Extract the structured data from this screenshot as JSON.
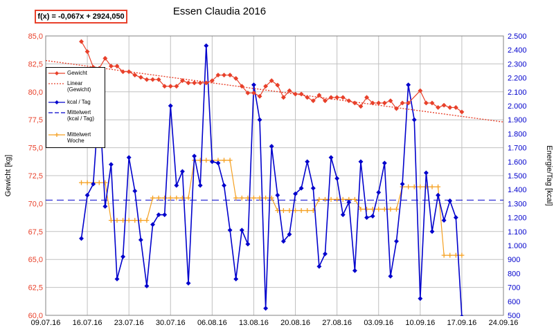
{
  "equation": "f(x) = -0,067x + 2924,050",
  "chart_data": {
    "type": "line",
    "title": "Essen Claudia 2016",
    "ylabel_left": "Gewicht [kg]",
    "ylabel_right": "Energie/Tag [kcal]",
    "xlabel": "",
    "x_ticks": [
      "09.07.16",
      "16.07.16",
      "23.07.16",
      "30.07.16",
      "06.08.16",
      "13.08.16",
      "20.08.16",
      "27.08.16",
      "03.09.16",
      "10.09.16",
      "17.09.16",
      "24.09.16"
    ],
    "y_left_ticks": [
      "60,0",
      "62,5",
      "65,0",
      "67,5",
      "70,0",
      "72,5",
      "75,0",
      "77,5",
      "80,0",
      "82,5",
      "85,0"
    ],
    "y_right_ticks": [
      "500",
      "600",
      "700",
      "800",
      "900",
      "1.000",
      "1.100",
      "1.200",
      "1.300",
      "1.400",
      "1.500",
      "1.600",
      "1.700",
      "1.800",
      "1.900",
      "2.000",
      "2.100",
      "2.200",
      "2.300",
      "2.400",
      "2.500"
    ],
    "ylim_left": [
      60,
      85
    ],
    "ylim_right": [
      500,
      2500
    ],
    "xlim_days": [
      0,
      77
    ],
    "x_start": "09.07.16",
    "grid": true,
    "legend_position": "left",
    "series": [
      {
        "name": "Gewicht",
        "axis": "left",
        "color": "#e8402a",
        "marker": "diamond",
        "x": [
          6,
          7,
          8,
          9,
          10,
          11,
          12,
          13,
          14,
          15,
          16,
          17,
          18,
          19,
          20,
          21,
          22,
          23,
          24,
          25,
          26,
          27,
          28,
          29,
          30,
          31,
          32,
          33,
          34,
          35,
          36,
          37,
          38,
          39,
          40,
          41,
          42,
          43,
          44,
          45,
          46,
          47,
          48,
          49,
          50,
          51,
          52,
          53,
          54,
          55,
          56,
          57,
          58,
          59,
          60,
          61,
          63,
          64,
          65,
          66,
          67,
          68,
          69,
          70
        ],
        "values": [
          84.5,
          83.6,
          82.2,
          82.1,
          83.0,
          82.3,
          82.3,
          81.8,
          81.8,
          81.5,
          81.3,
          81.1,
          81.1,
          81.1,
          80.5,
          80.5,
          80.5,
          81.0,
          80.8,
          80.8,
          80.8,
          80.8,
          81.0,
          81.5,
          81.5,
          81.5,
          81.2,
          80.5,
          79.9,
          79.9,
          79.6,
          80.5,
          81.0,
          80.6,
          79.5,
          80.1,
          79.8,
          79.8,
          79.5,
          79.2,
          79.7,
          79.2,
          79.5,
          79.5,
          79.5,
          79.2,
          79.0,
          78.7,
          79.5,
          79.0,
          79.0,
          79.0,
          79.2,
          78.5,
          79.0,
          79.0,
          80.1,
          79.0,
          79.0,
          78.6,
          78.8,
          78.6,
          78.6,
          78.2
        ]
      },
      {
        "name": "Linear (Gewicht)",
        "axis": "left",
        "color": "#e8402a",
        "style": "dotted",
        "x": [
          0,
          77
        ],
        "values": [
          82.8,
          77.3
        ]
      },
      {
        "name": "kcal / Tag",
        "axis": "right",
        "color": "#0000cc",
        "marker": "diamond",
        "x": [
          6,
          7,
          8,
          9,
          10,
          11,
          12,
          13,
          14,
          15,
          16,
          17,
          18,
          19,
          20,
          21,
          22,
          23,
          24,
          25,
          26,
          27,
          28,
          29,
          30,
          31,
          32,
          33,
          34,
          35,
          36,
          37,
          38,
          39,
          40,
          41,
          42,
          43,
          44,
          45,
          46,
          47,
          48,
          49,
          50,
          51,
          52,
          53,
          54,
          55,
          56,
          57,
          58,
          59,
          60,
          61,
          62,
          63,
          64,
          65,
          66,
          67,
          68,
          69,
          70
        ],
        "values": [
          1050,
          1360,
          1440,
          2050,
          1280,
          1580,
          760,
          920,
          1630,
          1390,
          1040,
          710,
          1150,
          1220,
          1220,
          2000,
          1430,
          1530,
          730,
          1640,
          1430,
          2430,
          1600,
          1590,
          1430,
          1110,
          760,
          1110,
          1010,
          2150,
          1900,
          550,
          1710,
          1360,
          1030,
          1080,
          1370,
          1410,
          1600,
          1410,
          850,
          940,
          1630,
          1480,
          1220,
          1310,
          820,
          1600,
          1200,
          1210,
          1380,
          1590,
          780,
          1030,
          1440,
          2150,
          1900,
          620,
          1520,
          1100,
          1360,
          1180,
          1320,
          1200,
          490
        ]
      },
      {
        "name": "Mittelwert (kcal / Tag)",
        "axis": "right",
        "color": "#0000cc",
        "style": "dashed",
        "x": [
          0,
          77
        ],
        "values": [
          1325,
          1325
        ]
      },
      {
        "name": "Mittelwert Woche",
        "axis": "right",
        "color": "#f5a020",
        "marker": "plus",
        "x": [
          6,
          7,
          8,
          9,
          10,
          11,
          12,
          13,
          14,
          15,
          16,
          17,
          18,
          19,
          20,
          21,
          22,
          23,
          24,
          25,
          26,
          27,
          28,
          29,
          30,
          31,
          32,
          33,
          34,
          35,
          36,
          37,
          38,
          39,
          40,
          41,
          42,
          43,
          44,
          45,
          46,
          47,
          48,
          49,
          50,
          51,
          52,
          53,
          54,
          55,
          56,
          57,
          58,
          59,
          60,
          61,
          62,
          63,
          64,
          65,
          66,
          67,
          68,
          69,
          70
        ],
        "values": [
          1450,
          1450,
          1450,
          1450,
          1450,
          1180,
          1180,
          1180,
          1180,
          1180,
          1180,
          1180,
          1340,
          1340,
          1340,
          1340,
          1340,
          1340,
          1340,
          1610,
          1610,
          1610,
          1610,
          1610,
          1610,
          1610,
          1340,
          1340,
          1340,
          1340,
          1340,
          1340,
          1340,
          1250,
          1250,
          1250,
          1250,
          1250,
          1250,
          1250,
          1330,
          1330,
          1330,
          1330,
          1330,
          1330,
          1330,
          1260,
          1260,
          1260,
          1260,
          1260,
          1260,
          1260,
          1420,
          1420,
          1420,
          1420,
          1420,
          1420,
          1420,
          930,
          930,
          930,
          930
        ]
      }
    ]
  },
  "legend": [
    {
      "label": "Gewicht",
      "style": "solid",
      "marker": "diamond",
      "color": "#e8402a"
    },
    {
      "label": "Linear (Gewicht)",
      "style": "dotted",
      "marker": "",
      "color": "#e8402a"
    },
    {
      "label": "kcal / Tag",
      "style": "solid",
      "marker": "diamond",
      "color": "#0000cc"
    },
    {
      "label": "Mittelwert (kcal / Tag)",
      "style": "dashed",
      "marker": "",
      "color": "#0000cc"
    },
    {
      "label": "Mittelwert Woche",
      "style": "solid",
      "marker": "plus",
      "color": "#f5a020"
    }
  ]
}
